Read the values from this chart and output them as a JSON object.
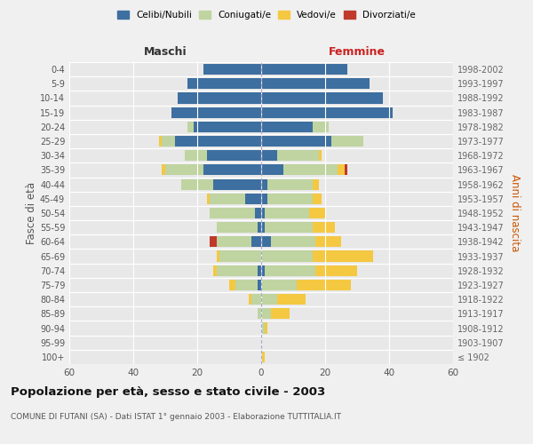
{
  "age_groups": [
    "100+",
    "95-99",
    "90-94",
    "85-89",
    "80-84",
    "75-79",
    "70-74",
    "65-69",
    "60-64",
    "55-59",
    "50-54",
    "45-49",
    "40-44",
    "35-39",
    "30-34",
    "25-29",
    "20-24",
    "15-19",
    "10-14",
    "5-9",
    "0-4"
  ],
  "birth_years": [
    "≤ 1902",
    "1903-1907",
    "1908-1912",
    "1913-1917",
    "1918-1922",
    "1923-1927",
    "1928-1932",
    "1933-1937",
    "1938-1942",
    "1943-1947",
    "1948-1952",
    "1953-1957",
    "1958-1962",
    "1963-1967",
    "1968-1972",
    "1973-1977",
    "1978-1982",
    "1983-1987",
    "1988-1992",
    "1993-1997",
    "1998-2002"
  ],
  "maschi": {
    "celibi": [
      0,
      0,
      0,
      0,
      0,
      1,
      1,
      0,
      3,
      1,
      2,
      5,
      15,
      18,
      17,
      27,
      21,
      28,
      26,
      23,
      18
    ],
    "coniugati": [
      0,
      0,
      0,
      1,
      3,
      7,
      13,
      13,
      11,
      13,
      14,
      11,
      10,
      12,
      7,
      4,
      2,
      0,
      0,
      0,
      0
    ],
    "vedovi": [
      0,
      0,
      0,
      0,
      1,
      2,
      1,
      1,
      0,
      0,
      0,
      1,
      0,
      1,
      0,
      1,
      0,
      0,
      0,
      0,
      0
    ],
    "divorziati": [
      0,
      0,
      0,
      0,
      0,
      0,
      0,
      0,
      2,
      0,
      0,
      0,
      0,
      0,
      0,
      0,
      0,
      0,
      0,
      0,
      0
    ]
  },
  "femmine": {
    "nubili": [
      0,
      0,
      0,
      0,
      0,
      0,
      1,
      0,
      3,
      1,
      1,
      2,
      2,
      7,
      5,
      22,
      16,
      41,
      38,
      34,
      27
    ],
    "coniugate": [
      0,
      0,
      1,
      3,
      5,
      11,
      16,
      16,
      14,
      15,
      14,
      14,
      14,
      17,
      13,
      10,
      5,
      0,
      0,
      0,
      0
    ],
    "vedove": [
      1,
      0,
      1,
      6,
      9,
      17,
      13,
      19,
      8,
      7,
      5,
      3,
      2,
      2,
      1,
      0,
      0,
      0,
      0,
      0,
      0
    ],
    "divorziate": [
      0,
      0,
      0,
      0,
      0,
      0,
      0,
      0,
      0,
      0,
      0,
      0,
      0,
      1,
      0,
      0,
      0,
      0,
      0,
      0,
      0
    ]
  },
  "colors": {
    "celibi_nubili": "#3d6fa0",
    "coniugati": "#bfd4a0",
    "vedovi": "#f5c842",
    "divorziati": "#c0392b"
  },
  "xlim": 60,
  "title": "Popolazione per età, sesso e stato civile - 2003",
  "subtitle": "COMUNE DI FUTANI (SA) - Dati ISTAT 1° gennaio 2003 - Elaborazione TUTTITALIA.IT",
  "ylabel_left": "Fasce di età",
  "ylabel_right": "Anni di nascita",
  "maschi_label": "Maschi",
  "femmine_label": "Femmine",
  "legend_labels": [
    "Celibi/Nubili",
    "Coniugati/e",
    "Vedovi/e",
    "Divorziati/e"
  ],
  "background_color": "#f0f0f0",
  "plot_bg_color": "#e8e8e8",
  "bar_height": 0.75
}
